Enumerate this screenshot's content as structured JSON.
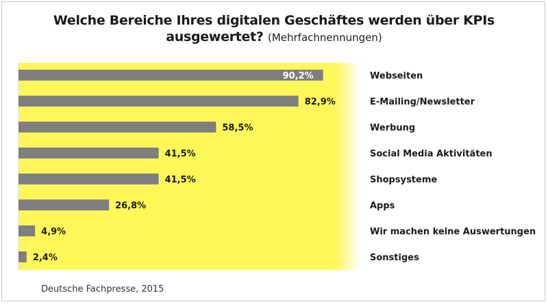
{
  "title_line1": "Welche Bereiche Ihres digitalen Geschäftes werden über KPIs",
  "title_line2": "ausgewertet?",
  "subtitle": "(Mehrfachnennungen)",
  "source": "Deutsche Fachpresse, 2015",
  "colors": {
    "plot_background": "#fff75a",
    "plot_gradient_edge": "#ffffff",
    "bar": "#7f7f7f",
    "value_label_inside": "#ffffff",
    "value_label_outside": "#1a1a1a"
  },
  "chart_data": {
    "type": "bar",
    "orientation": "horizontal",
    "categories": [
      "Webseiten",
      "E-Mailing/Newsletter",
      "Werbung",
      "Social Media Aktivitäten",
      "Shopsysteme",
      "Apps",
      "Wir machen keine Auswertungen",
      "Sonstiges"
    ],
    "values": [
      90.2,
      82.9,
      58.5,
      41.5,
      41.5,
      26.8,
      4.9,
      2.4
    ],
    "value_labels": [
      "90,2%",
      "82,9%",
      "58,5%",
      "41,5%",
      "41,5%",
      "26,8%",
      "4,9%",
      "2,4%"
    ],
    "unit": "%",
    "xlim": [
      0,
      100
    ],
    "grid": false,
    "legend": "none"
  }
}
